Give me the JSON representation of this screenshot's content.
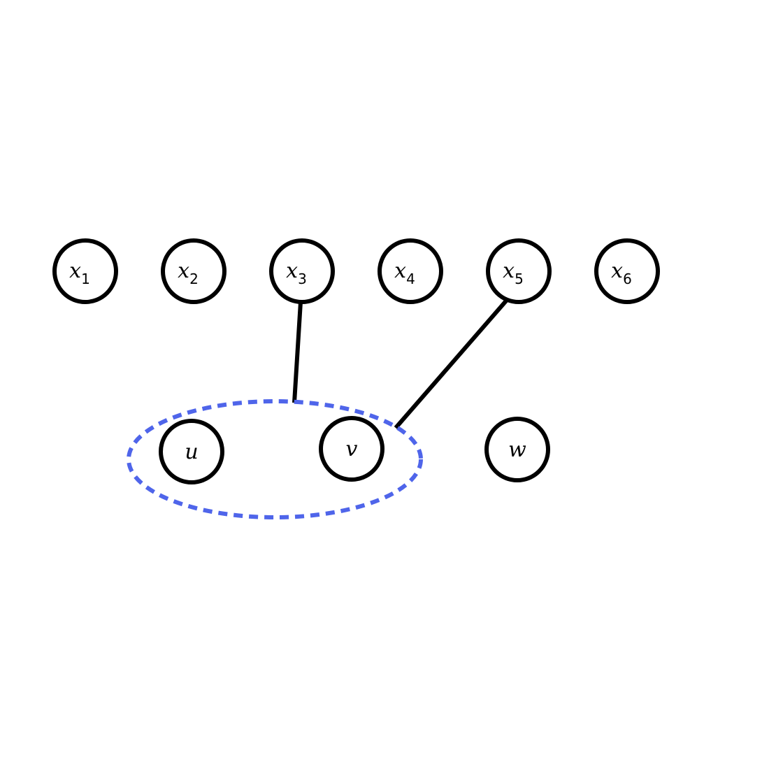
{
  "colors": {
    "node_stroke": "#000000",
    "edge_stroke": "#000000",
    "group_stroke": "#4f65ea"
  },
  "top_nodes": [
    {
      "id": "x1",
      "label": "x",
      "sub": "1"
    },
    {
      "id": "x2",
      "label": "x",
      "sub": "2"
    },
    {
      "id": "x3",
      "label": "x",
      "sub": "3"
    },
    {
      "id": "x4",
      "label": "x",
      "sub": "4"
    },
    {
      "id": "x5",
      "label": "x",
      "sub": "5"
    },
    {
      "id": "x6",
      "label": "x",
      "sub": "6"
    }
  ],
  "bottom_nodes": [
    {
      "id": "u",
      "label": "u"
    },
    {
      "id": "v",
      "label": "v"
    },
    {
      "id": "w",
      "label": "w"
    }
  ],
  "edges": [
    {
      "from": "x3",
      "to": "group-uv"
    },
    {
      "from": "x5",
      "to": "group-uv"
    }
  ],
  "groups": [
    {
      "id": "group-uv",
      "members": [
        "u",
        "v"
      ],
      "style": "dashed"
    }
  ]
}
